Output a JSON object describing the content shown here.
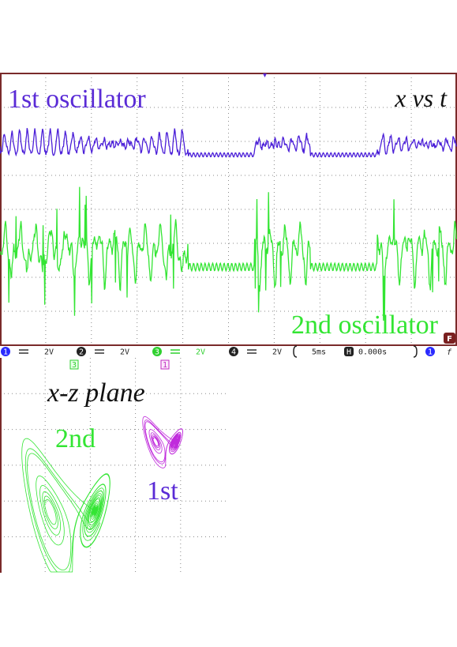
{
  "top_panel": {
    "title_left": "1st oscillator",
    "title_right": "x vs t",
    "bottom_label": "2nd oscillator",
    "marker": "F"
  },
  "status_bar": {
    "channels": [
      {
        "number": "1",
        "scale": "2V"
      },
      {
        "number": "2",
        "scale": "2V"
      },
      {
        "number": "3",
        "scale": "2V"
      },
      {
        "number": "4",
        "scale": "2V"
      }
    ],
    "timebase": "5ms",
    "position_icon": "H",
    "position": "0.000s",
    "trigger_channel": "1",
    "trigger_slope": "f"
  },
  "bottom_panel": {
    "title": "x-z plane",
    "label_green": "2nd",
    "label_purple": "1st",
    "marker_green": "3",
    "marker_purple": "1"
  }
}
